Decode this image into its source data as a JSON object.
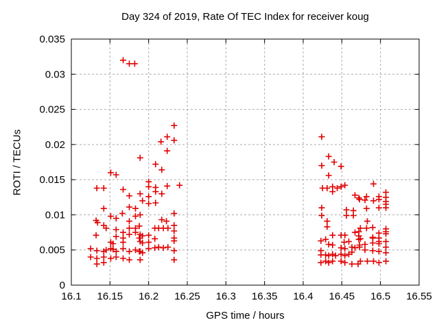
{
  "chart_data": {
    "type": "scatter",
    "title": "Day 324 of 2019, Rate Of TEC Index for receiver koug",
    "xlabel": "GPS time / hours",
    "ylabel": "ROTI / TECUs",
    "xlim": [
      16.1,
      16.55
    ],
    "ylim": [
      0,
      0.035
    ],
    "grid": true,
    "legend": "none",
    "xticks": {
      "values": [
        16.1,
        16.15,
        16.2,
        16.25,
        16.3,
        16.35,
        16.4,
        16.45,
        16.5,
        16.55
      ],
      "labels": [
        "16.1",
        "16.15",
        "16.2",
        "16.25",
        "16.3",
        "16.35",
        "16.4",
        "16.45",
        "16.5",
        "16.55"
      ]
    },
    "yticks": {
      "values": [
        0,
        0.005,
        0.01,
        0.015,
        0.02,
        0.025,
        0.03,
        0.035
      ],
      "labels": [
        "0",
        "0.005",
        "0.01",
        "0.015",
        "0.02",
        "0.025",
        "0.03",
        "0.035"
      ]
    },
    "marker": {
      "shape": "plus",
      "color": "#e00000"
    },
    "grid_color": "#aaaaaa",
    "border_color": "#000000",
    "series": [
      {
        "name": "ROTI",
        "points": [
          [
            16.167,
            0.032
          ],
          [
            16.175,
            0.0315
          ],
          [
            16.182,
            0.0315
          ],
          [
            16.233,
            0.0227
          ],
          [
            16.224,
            0.0211
          ],
          [
            16.233,
            0.0206
          ],
          [
            16.216,
            0.0204
          ],
          [
            16.224,
            0.0191
          ],
          [
            16.189,
            0.0181
          ],
          [
            16.209,
            0.0172
          ],
          [
            16.217,
            0.0164
          ],
          [
            16.151,
            0.016
          ],
          [
            16.158,
            0.0157
          ],
          [
            16.2,
            0.0147
          ],
          [
            16.24,
            0.0142
          ],
          [
            16.224,
            0.0141
          ],
          [
            16.2,
            0.014
          ],
          [
            16.209,
            0.0139
          ],
          [
            16.133,
            0.0138
          ],
          [
            16.142,
            0.0138
          ],
          [
            16.167,
            0.0136
          ],
          [
            16.209,
            0.0133
          ],
          [
            16.217,
            0.013
          ],
          [
            16.189,
            0.013
          ],
          [
            16.175,
            0.0127
          ],
          [
            16.2,
            0.0126
          ],
          [
            16.192,
            0.012
          ],
          [
            16.209,
            0.0117
          ],
          [
            16.2,
            0.0116
          ],
          [
            16.175,
            0.0111
          ],
          [
            16.142,
            0.0109
          ],
          [
            16.183,
            0.0109
          ],
          [
            16.233,
            0.0102
          ],
          [
            16.166,
            0.0102
          ],
          [
            16.189,
            0.01
          ],
          [
            16.151,
            0.0098
          ],
          [
            16.183,
            0.0098
          ],
          [
            16.158,
            0.0095
          ],
          [
            16.217,
            0.0093
          ],
          [
            16.132,
            0.0092
          ],
          [
            16.223,
            0.0091
          ],
          [
            16.175,
            0.0091
          ],
          [
            16.134,
            0.0089
          ],
          [
            16.142,
            0.0085
          ],
          [
            16.233,
            0.0085
          ],
          [
            16.188,
            0.0084
          ],
          [
            16.145,
            0.0081
          ],
          [
            16.158,
            0.0079
          ],
          [
            16.175,
            0.0081
          ],
          [
            16.183,
            0.0081
          ],
          [
            16.208,
            0.0081
          ],
          [
            16.213,
            0.0081
          ],
          [
            16.219,
            0.0081
          ],
          [
            16.225,
            0.0081
          ],
          [
            16.233,
            0.0077
          ],
          [
            16.167,
            0.0075
          ],
          [
            16.183,
            0.0075
          ],
          [
            16.132,
            0.0071
          ],
          [
            16.175,
            0.0072
          ],
          [
            16.189,
            0.0072
          ],
          [
            16.2,
            0.0071
          ],
          [
            16.192,
            0.007
          ],
          [
            16.158,
            0.0069
          ],
          [
            16.167,
            0.0067
          ],
          [
            16.188,
            0.0067
          ],
          [
            16.233,
            0.0067
          ],
          [
            16.208,
            0.0066
          ],
          [
            16.233,
            0.0063
          ],
          [
            16.189,
            0.0062
          ],
          [
            16.151,
            0.0061
          ],
          [
            16.167,
            0.0061
          ],
          [
            16.2,
            0.0061
          ],
          [
            16.192,
            0.006
          ],
          [
            16.154,
            0.0059
          ],
          [
            16.208,
            0.0053
          ],
          [
            16.213,
            0.0054
          ],
          [
            16.219,
            0.0053
          ],
          [
            16.225,
            0.0054
          ],
          [
            16.125,
            0.0052
          ],
          [
            16.151,
            0.0052
          ],
          [
            16.167,
            0.0052
          ],
          [
            16.2,
            0.0052
          ],
          [
            16.154,
            0.0051
          ],
          [
            16.145,
            0.005
          ],
          [
            16.183,
            0.005
          ],
          [
            16.233,
            0.0049
          ],
          [
            16.133,
            0.0049
          ],
          [
            16.142,
            0.0048
          ],
          [
            16.158,
            0.0048
          ],
          [
            16.175,
            0.0048
          ],
          [
            16.188,
            0.0048
          ],
          [
            16.189,
            0.0048
          ],
          [
            16.192,
            0.0046
          ],
          [
            16.125,
            0.004
          ],
          [
            16.142,
            0.004
          ],
          [
            16.158,
            0.004
          ],
          [
            16.133,
            0.0038
          ],
          [
            16.151,
            0.0038
          ],
          [
            16.167,
            0.0038
          ],
          [
            16.175,
            0.0036
          ],
          [
            16.189,
            0.0036
          ],
          [
            16.233,
            0.0036
          ],
          [
            16.133,
            0.003
          ],
          [
            16.142,
            0.0032
          ],
          [
            16.424,
            0.0211
          ],
          [
            16.433,
            0.0183
          ],
          [
            16.44,
            0.0175
          ],
          [
            16.424,
            0.017
          ],
          [
            16.449,
            0.0169
          ],
          [
            16.433,
            0.0156
          ],
          [
            16.491,
            0.0144
          ],
          [
            16.454,
            0.0142
          ],
          [
            16.438,
            0.014
          ],
          [
            16.449,
            0.014
          ],
          [
            16.425,
            0.0138
          ],
          [
            16.431,
            0.0138
          ],
          [
            16.444,
            0.0138
          ],
          [
            16.438,
            0.0133
          ],
          [
            16.507,
            0.0132
          ],
          [
            16.467,
            0.0128
          ],
          [
            16.482,
            0.0126
          ],
          [
            16.498,
            0.0126
          ],
          [
            16.472,
            0.0124
          ],
          [
            16.473,
            0.0122
          ],
          [
            16.498,
            0.0122
          ],
          [
            16.48,
            0.0121
          ],
          [
            16.491,
            0.012
          ],
          [
            16.507,
            0.0125
          ],
          [
            16.507,
            0.0119
          ],
          [
            16.507,
            0.0115
          ],
          [
            16.424,
            0.011
          ],
          [
            16.482,
            0.0109
          ],
          [
            16.498,
            0.011
          ],
          [
            16.507,
            0.011
          ],
          [
            16.456,
            0.0107
          ],
          [
            16.465,
            0.0106
          ],
          [
            16.424,
            0.0099
          ],
          [
            16.456,
            0.0099
          ],
          [
            16.465,
            0.0099
          ],
          [
            16.431,
            0.0091
          ],
          [
            16.483,
            0.0091
          ],
          [
            16.431,
            0.0083
          ],
          [
            16.474,
            0.0081
          ],
          [
            16.482,
            0.0081
          ],
          [
            16.49,
            0.0082
          ],
          [
            16.507,
            0.008
          ],
          [
            16.507,
            0.0076
          ],
          [
            16.498,
            0.0074
          ],
          [
            16.507,
            0.0073
          ],
          [
            16.438,
            0.0071
          ],
          [
            16.449,
            0.0071
          ],
          [
            16.454,
            0.0071
          ],
          [
            16.467,
            0.0075
          ],
          [
            16.472,
            0.0076
          ],
          [
            16.472,
            0.007
          ],
          [
            16.423,
            0.0063
          ],
          [
            16.429,
            0.0065
          ],
          [
            16.453,
            0.0061
          ],
          [
            16.459,
            0.0062
          ],
          [
            16.472,
            0.0065
          ],
          [
            16.474,
            0.0066
          ],
          [
            16.49,
            0.0067
          ],
          [
            16.49,
            0.0068
          ],
          [
            16.498,
            0.0067
          ],
          [
            16.433,
            0.0058
          ],
          [
            16.438,
            0.0057
          ],
          [
            16.473,
            0.0057
          ],
          [
            16.48,
            0.0058
          ],
          [
            16.49,
            0.006
          ],
          [
            16.498,
            0.0062
          ],
          [
            16.507,
            0.0062
          ],
          [
            16.498,
            0.0059
          ],
          [
            16.473,
            0.0054
          ],
          [
            16.449,
            0.0053
          ],
          [
            16.454,
            0.0052
          ],
          [
            16.463,
            0.0054
          ],
          [
            16.467,
            0.0053
          ],
          [
            16.48,
            0.005
          ],
          [
            16.49,
            0.0049
          ],
          [
            16.498,
            0.0048
          ],
          [
            16.507,
            0.0054
          ],
          [
            16.507,
            0.0046
          ],
          [
            16.423,
            0.0049
          ],
          [
            16.423,
            0.0043
          ],
          [
            16.429,
            0.0043
          ],
          [
            16.433,
            0.0042
          ],
          [
            16.438,
            0.0044
          ],
          [
            16.442,
            0.0042
          ],
          [
            16.449,
            0.0044
          ],
          [
            16.454,
            0.0042
          ],
          [
            16.459,
            0.0044
          ],
          [
            16.463,
            0.0047
          ],
          [
            16.423,
            0.0032
          ],
          [
            16.429,
            0.0034
          ],
          [
            16.433,
            0.0032
          ],
          [
            16.438,
            0.0034
          ],
          [
            16.449,
            0.0034
          ],
          [
            16.454,
            0.0032
          ],
          [
            16.463,
            0.003
          ],
          [
            16.471,
            0.003
          ],
          [
            16.474,
            0.0034
          ],
          [
            16.483,
            0.0034
          ],
          [
            16.491,
            0.0034
          ],
          [
            16.498,
            0.0032
          ],
          [
            16.507,
            0.0034
          ]
        ]
      }
    ]
  }
}
